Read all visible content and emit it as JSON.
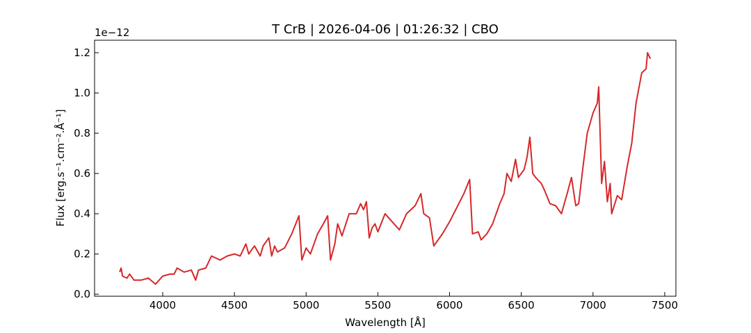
{
  "chart_data": {
    "type": "line",
    "title": "T CrB | 2026-04-06 | 01:26:32 | CBO",
    "x_label": "Wavelength [Å]",
    "y_label": "Flux [erg.s⁻¹.cm⁻².Å⁻¹]",
    "y_offset_label": "1e−12",
    "xlim": [
      3525,
      7578
    ],
    "ylim": [
      -0.01,
      1.262
    ],
    "xticks": [
      4000,
      4500,
      5000,
      5500,
      6000,
      6500,
      7000,
      7500
    ],
    "yticks": [
      {
        "value": 0,
        "label": "0.0"
      },
      0.2,
      0.4,
      0.6,
      0.8,
      {
        "value": 1,
        "label": "1.0"
      },
      1.2
    ],
    "grid": false,
    "series": [
      {
        "color": "#d62728",
        "x": [
          3700,
          3710,
          3720,
          3750,
          3770,
          3800,
          3850,
          3900,
          3950,
          4000,
          4050,
          4080,
          4100,
          4150,
          4200,
          4230,
          4250,
          4300,
          4340,
          4400,
          4450,
          4500,
          4540,
          4580,
          4600,
          4640,
          4680,
          4700,
          4740,
          4760,
          4780,
          4800,
          4850,
          4900,
          4950,
          4970,
          5000,
          5030,
          5080,
          5120,
          5150,
          5170,
          5200,
          5220,
          5250,
          5300,
          5350,
          5380,
          5400,
          5420,
          5440,
          5460,
          5480,
          5500,
          5550,
          5600,
          5650,
          5700,
          5760,
          5800,
          5820,
          5860,
          5890,
          5950,
          6000,
          6050,
          6100,
          6140,
          6160,
          6200,
          6220,
          6260,
          6300,
          6350,
          6380,
          6400,
          6430,
          6460,
          6480,
          6520,
          6540,
          6560,
          6580,
          6600,
          6640,
          6660,
          6700,
          6740,
          6780,
          6820,
          6850,
          6880,
          6900,
          6930,
          6960,
          7000,
          7030,
          7040,
          7060,
          7080,
          7100,
          7120,
          7130,
          7170,
          7200,
          7240,
          7270,
          7300,
          7340,
          7370,
          7380,
          7400
        ],
        "values": [
          0.11,
          0.13,
          0.09,
          0.08,
          0.1,
          0.07,
          0.07,
          0.08,
          0.05,
          0.09,
          0.1,
          0.1,
          0.13,
          0.11,
          0.12,
          0.07,
          0.12,
          0.13,
          0.19,
          0.17,
          0.19,
          0.2,
          0.19,
          0.25,
          0.2,
          0.24,
          0.19,
          0.24,
          0.28,
          0.19,
          0.24,
          0.21,
          0.23,
          0.3,
          0.39,
          0.17,
          0.23,
          0.2,
          0.3,
          0.35,
          0.39,
          0.17,
          0.25,
          0.35,
          0.29,
          0.4,
          0.4,
          0.45,
          0.42,
          0.46,
          0.28,
          0.33,
          0.35,
          0.31,
          0.4,
          0.36,
          0.32,
          0.4,
          0.44,
          0.5,
          0.4,
          0.38,
          0.24,
          0.3,
          0.36,
          0.43,
          0.5,
          0.57,
          0.3,
          0.31,
          0.27,
          0.3,
          0.35,
          0.45,
          0.5,
          0.6,
          0.56,
          0.67,
          0.58,
          0.62,
          0.68,
          0.78,
          0.6,
          0.58,
          0.55,
          0.52,
          0.45,
          0.44,
          0.4,
          0.5,
          0.58,
          0.44,
          0.45,
          0.63,
          0.8,
          0.9,
          0.95,
          1.03,
          0.55,
          0.66,
          0.46,
          0.55,
          0.4,
          0.49,
          0.47,
          0.64,
          0.75,
          0.95,
          1.1,
          1.12,
          1.2,
          1.17
        ]
      }
    ]
  }
}
